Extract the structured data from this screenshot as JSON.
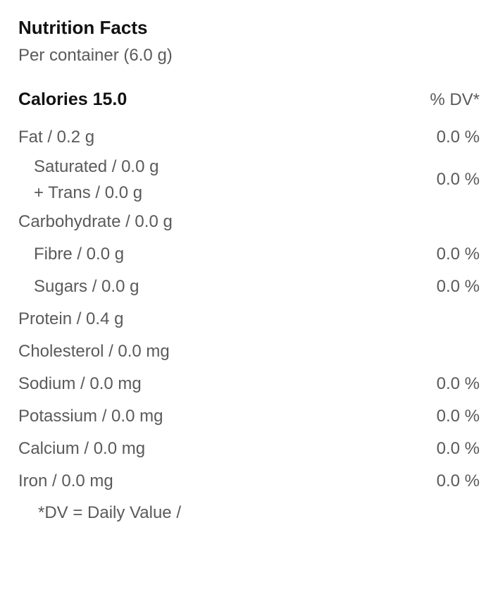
{
  "header": {
    "title": "Nutrition Facts",
    "subtitle": "Per container (6.0 g)"
  },
  "caloriesRow": {
    "label": "Calories 15.0",
    "dvHeader": "% DV*"
  },
  "rows": {
    "fat": {
      "label": "Fat / 0.2 g",
      "value": "0.0 %"
    },
    "satTrans": {
      "sat": "Saturated / 0.0 g",
      "trans": "+ Trans / 0.0 g",
      "value": "0.0 %"
    },
    "carb": {
      "label": "Carbohydrate / 0.0 g"
    },
    "fibre": {
      "label": "Fibre / 0.0 g",
      "value": "0.0 %"
    },
    "sugars": {
      "label": "Sugars / 0.0 g",
      "value": "0.0 %"
    },
    "protein": {
      "label": "Protein / 0.4 g"
    },
    "cholesterol": {
      "label": "Cholesterol / 0.0 mg"
    },
    "sodium": {
      "label": "Sodium / 0.0 mg",
      "value": "0.0 %"
    },
    "potassium": {
      "label": "Potassium / 0.0 mg",
      "value": "0.0 %"
    },
    "calcium": {
      "label": "Calcium / 0.0 mg",
      "value": "0.0 %"
    },
    "iron": {
      "label": "Iron / 0.0 mg",
      "value": "0.0 %"
    }
  },
  "footnote": "*DV = Daily Value /"
}
